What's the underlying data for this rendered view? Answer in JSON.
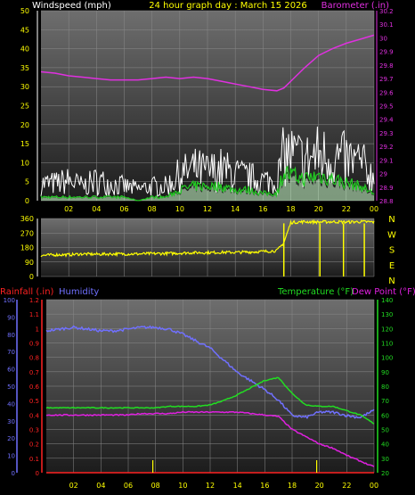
{
  "header": {
    "left_label": "Windspeed (mph)",
    "center_label": "24 hour graph day : March 15 2026",
    "right_label": "Barometer (.in)"
  },
  "colors": {
    "background": "#000000",
    "wind_title": "#ffffff",
    "center_title": "#ffff00",
    "barometer": "#e030e0",
    "gust": "#ffffff",
    "wind_avg": "#22cc22",
    "wind_fill": "#ccffcc",
    "direction": "#ffff00",
    "rainfall": "#ff2222",
    "humidity": "#7070ff",
    "temperature": "#22dd22",
    "dewpoint": "#e020e0",
    "tick_labels": "#ffff00"
  },
  "x_ticks": [
    "02",
    "04",
    "06",
    "08",
    "10",
    "12",
    "14",
    "16",
    "18",
    "20",
    "22",
    "00"
  ],
  "chart_data": [
    {
      "type": "line",
      "title": "24 hour graph day : March 15 2026",
      "ylabel": "Windspeed (mph)",
      "y2label": "Barometer (.in)",
      "ylim": [
        0,
        50
      ],
      "y2lim": [
        28.8,
        30.2
      ],
      "y_ticks": [
        "0",
        "5",
        "10",
        "15",
        "20",
        "25",
        "30",
        "35",
        "40",
        "45",
        "50"
      ],
      "y2_ticks": [
        "28.8",
        "28.9",
        "29",
        "29.1",
        "29.2",
        "29.3",
        "29.4",
        "29.5",
        "29.6",
        "29.7",
        "29.8",
        "29.9",
        "30",
        "30.1",
        "30.2"
      ],
      "x_hours": [
        0,
        1,
        2,
        3,
        4,
        5,
        6,
        7,
        8,
        9,
        10,
        11,
        12,
        13,
        14,
        15,
        16,
        17,
        17.5,
        18,
        19,
        20,
        21,
        22,
        23,
        24
      ],
      "series": [
        {
          "name": "Barometer (.in)",
          "values": [
            29.75,
            29.74,
            29.72,
            29.71,
            29.7,
            29.69,
            29.69,
            29.69,
            29.7,
            29.71,
            29.7,
            29.71,
            29.7,
            29.68,
            29.66,
            29.64,
            29.62,
            29.61,
            29.63,
            29.68,
            29.78,
            29.87,
            29.92,
            29.96,
            29.99,
            30.02
          ]
        },
        {
          "name": "Windspeed gust",
          "values": [
            6,
            6,
            7,
            5,
            7,
            6,
            5,
            4,
            5,
            5,
            9,
            11,
            10,
            11,
            9,
            8,
            7,
            7,
            16,
            16,
            14,
            16,
            15,
            14,
            13,
            8
          ]
        },
        {
          "name": "Windspeed avg",
          "values": [
            1,
            1,
            1,
            1,
            1,
            1,
            1,
            0,
            1,
            1,
            3,
            4,
            4,
            4,
            3,
            3,
            2,
            2,
            8,
            7,
            6,
            7,
            6,
            5,
            4,
            2
          ]
        }
      ]
    },
    {
      "type": "scatter",
      "ylabel": "Wind direction",
      "ylim": [
        0,
        360
      ],
      "y_ticks": [
        "0",
        "90",
        "180",
        "270",
        "360"
      ],
      "compass": [
        "N",
        "W",
        "S",
        "E",
        "N"
      ],
      "x_hours": [
        0,
        1,
        2,
        3,
        4,
        5,
        6,
        7,
        8,
        9,
        10,
        11,
        12,
        13,
        14,
        15,
        16,
        17,
        17.5,
        18,
        19,
        20,
        21,
        22,
        23,
        24
      ],
      "values": [
        130,
        135,
        135,
        140,
        138,
        140,
        140,
        140,
        142,
        143,
        145,
        148,
        148,
        150,
        150,
        152,
        155,
        160,
        210,
        335,
        340,
        338,
        340,
        338,
        340,
        338
      ]
    },
    {
      "type": "line",
      "ylabel": "Rainfall (.in) / Humidity",
      "y2label": "Temperature (°F) Dew Point (°F)",
      "ylim_rain": [
        0,
        1.2
      ],
      "ylim_humidity": [
        0,
        100
      ],
      "ylim_temp": [
        20,
        140
      ],
      "rain_ticks": [
        "0",
        "0.1",
        "0.2",
        "0.3",
        "0.4",
        "0.5",
        "0.6",
        "0.7",
        "0.8",
        "0.9",
        "1",
        "1.1",
        "1.2"
      ],
      "humidity_ticks": [
        "0",
        "10",
        "20",
        "30",
        "40",
        "50",
        "60",
        "70",
        "80",
        "90",
        "100"
      ],
      "temp_ticks": [
        "20",
        "30",
        "40",
        "50",
        "60",
        "70",
        "80",
        "90",
        "100",
        "110",
        "120",
        "130",
        "140"
      ],
      "x_hours": [
        0,
        1,
        2,
        3,
        4,
        5,
        6,
        7,
        8,
        9,
        10,
        11,
        12,
        13,
        14,
        15,
        16,
        17,
        18,
        19,
        20,
        21,
        22,
        23,
        24
      ],
      "series": [
        {
          "name": "Humidity",
          "values": [
            82,
            83,
            84,
            83,
            82,
            82,
            83,
            84,
            84,
            83,
            80,
            76,
            72,
            65,
            58,
            53,
            48,
            42,
            33,
            32,
            35,
            35,
            33,
            32,
            36
          ]
        },
        {
          "name": "Temperature (°F)",
          "values": [
            65,
            65,
            65,
            65,
            65,
            65,
            65,
            65,
            65,
            66,
            66,
            66,
            67,
            70,
            74,
            79,
            84,
            86,
            75,
            67,
            66,
            66,
            63,
            60,
            54
          ]
        },
        {
          "name": "Dew Point (°F)",
          "values": [
            60,
            60,
            60,
            60,
            60,
            60,
            60,
            61,
            61,
            61,
            62,
            62,
            62,
            62,
            62,
            61,
            60,
            59,
            50,
            45,
            40,
            37,
            32,
            28,
            24
          ]
        },
        {
          "name": "Rainfall (.in)",
          "values": [
            0,
            0,
            0,
            0,
            0,
            0,
            0,
            0,
            0,
            0,
            0,
            0,
            0,
            0,
            0,
            0,
            0,
            0,
            0,
            0,
            0,
            0,
            0,
            0,
            0
          ]
        }
      ]
    }
  ]
}
